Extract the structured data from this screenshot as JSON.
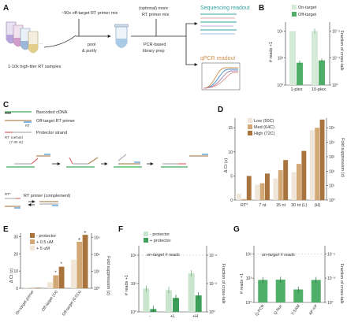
{
  "colors": {
    "on_target": "#d4ead6",
    "off_target": "#4fae67",
    "protector_minus": "#c9e5cd",
    "protector_plus": "#3da05a",
    "temp_low": "#efe5d8",
    "temp_med": "#d2a877",
    "temp_high": "#a8733c",
    "prot_none": "#a8733c",
    "prot_05": "#d2a877",
    "prot_5": "#f1e6d6",
    "seq_teal": "#34a1a3",
    "qpcr_orange": "#cf8d4c",
    "oligo_green": "#3fae57",
    "oligo_brown": "#b48859",
    "oligo_blue": "#3f8fd0",
    "oligo_grey": "#b2b2b2"
  },
  "panel_labels": {
    "A": "A",
    "B": "B",
    "C": "C",
    "D": "D",
    "E": "E",
    "F": "F",
    "G": "G"
  },
  "panel_a": {
    "samples_label": "1-10x high-titer RT samples",
    "primer_mix_label": "~90x off-target RT primer mix",
    "pool_label_1": "pool",
    "pool_label_2": "& purify",
    "more_mix_label_1": "(optional) more",
    "more_mix_label_2": "RT primer mix",
    "pcr_label_1": "PCR-based",
    "pcr_label_2": "library prep",
    "seq_readout": "Sequencing readout",
    "qpcr_readout": "qPCR readout"
  },
  "panel_c": {
    "legend_cdna": "Barcoded cDNA",
    "legend_primer": "Off-target RT primer",
    "legend_rt": "RT",
    "legend_protector": "Protector strand",
    "legend_toehold_1": "toehold",
    "legend_toehold_2": "(7-30 nt)",
    "rt_small": "RT",
    "complement_prefix": "RT*",
    "complement_label": "RT primer (complement)"
  },
  "chart_b": {
    "type": "bar",
    "categories": [
      "1-plex",
      "10-plex"
    ],
    "series": [
      {
        "name": "On-target",
        "values": [
          1000000,
          1000000
        ],
        "err": [
          null,
          1.9
        ]
      },
      {
        "name": "Off-target",
        "values": [
          300,
          550
        ],
        "err": [
          1.7,
          1.6
        ]
      }
    ],
    "ylabel": "# reads +1",
    "y2label": "Fraction of cross-talk",
    "yscale": "log",
    "ylim": [
      1,
      10000000
    ],
    "yticks": [
      "10⁰",
      "10³",
      "10⁶"
    ],
    "y2ticks": [
      "10⁰",
      "10⁻³",
      "10⁻⁶"
    ],
    "legend_position": "top-right"
  },
  "chart_d": {
    "type": "bar",
    "categories": [
      "RT*",
      "7 nt",
      "15 nt",
      "30 nt (L)",
      "(H)"
    ],
    "series": [
      {
        "name": "Low (50C)",
        "values": [
          1.3,
          3.2,
          4.5,
          5.8,
          14.5
        ]
      },
      {
        "name": "Med (64C)",
        "values": [
          0.2,
          3.5,
          6.2,
          7.5,
          15.0
        ]
      },
      {
        "name": "High (72C)",
        "values": [
          5.0,
          5.5,
          8.3,
          10.2,
          16.7
        ]
      }
    ],
    "ylabel": "Δ Ct (z)",
    "y2label": "Fold suppression (z)",
    "ylim": [
      0,
      17
    ],
    "yticks": [
      "0",
      "5",
      "10",
      "15"
    ],
    "y2ticks": [
      "10⁰",
      "10¹",
      "10²",
      "10³",
      "10⁴",
      "10⁵"
    ],
    "legend_position": "top-left"
  },
  "chart_e": {
    "type": "bar",
    "categories": [
      "On-target primer",
      "Off-target (1x)",
      "Off-target (0.01x)"
    ],
    "series": [
      {
        "name": "- protector",
        "values": [
          0.3,
          12.5,
          31.0
        ]
      },
      {
        "name": "+ 0.5 uM",
        "values": [
          0.2,
          7.5,
          27.0
        ]
      },
      {
        "name": "+ 5 uM",
        "values": [
          0.3,
          3.5,
          16.5
        ]
      }
    ],
    "markers": [
      "*",
      "*",
      "+",
      "+"
    ],
    "ylabel": "Δ Ct (z)",
    "y2label": "Fold suppression (z)",
    "ylim": [
      0,
      32
    ],
    "yticks": [
      "0",
      "10",
      "20",
      "30"
    ],
    "y2ticks": [
      "10⁰",
      "10³",
      "10⁶",
      "10⁹"
    ],
    "legend_position": "top-left"
  },
  "chart_f": {
    "type": "bar",
    "categories": [
      "-",
      "+L",
      "+H"
    ],
    "series": [
      {
        "name": "- protector",
        "values": [
          300,
          200,
          12000
        ]
      },
      {
        "name": "+ protector",
        "values": [
          2,
          30,
          55
        ]
      }
    ],
    "reference_label": "on-target # reads",
    "ylabel": "# reads +1",
    "y2label": "Fraction of cross-talk",
    "yscale": "log",
    "ylim": [
      1,
      10000000
    ],
    "yticks": [
      "10⁰",
      "10³",
      "10⁶"
    ],
    "y2ticks": [
      "10⁰",
      "10⁻³",
      "10⁻⁶"
    ],
    "legend_position": "top-left"
  },
  "chart_g": {
    "type": "bar",
    "categories": [
      "Q-PCR",
      "Q-Nuc",
      "T-SAM",
      "AP-XP"
    ],
    "series": [
      {
        "name": "reads",
        "values": [
          600,
          650,
          40,
          600
        ]
      }
    ],
    "reference_label": "on-target # reads",
    "ylabel": "# reads +1",
    "y2label": "Fraction of cross-talk",
    "yscale": "log",
    "ylim": [
      1,
      10000000
    ],
    "yticks": [
      "10⁰",
      "10³",
      "10⁶"
    ],
    "y2ticks": [
      "10⁰",
      "10⁻³",
      "10⁻⁶"
    ]
  }
}
